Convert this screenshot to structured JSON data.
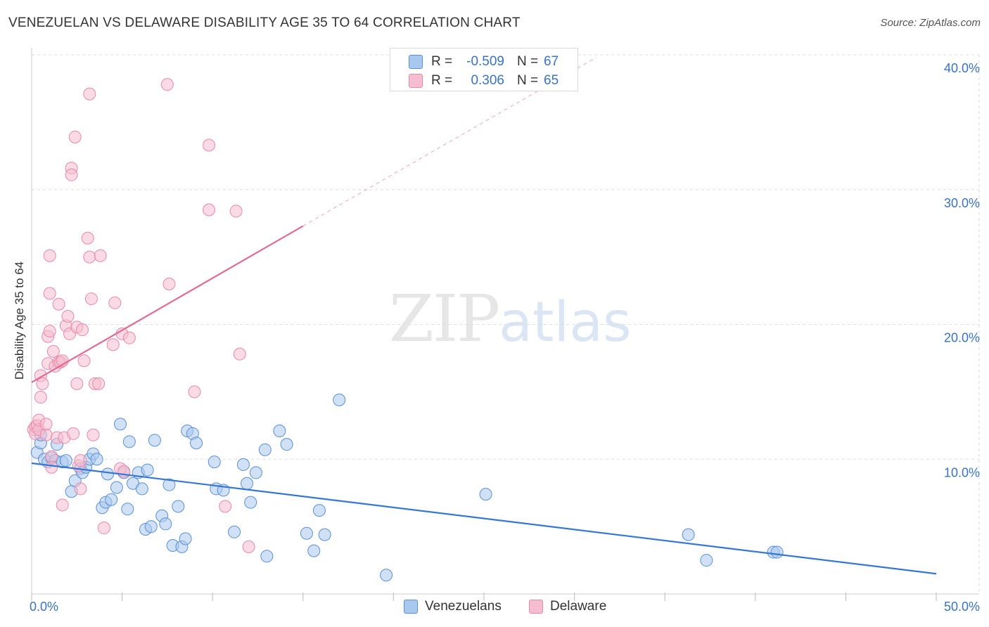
{
  "header": {
    "title": "VENEZUELAN VS DELAWARE DISABILITY AGE 35 TO 64 CORRELATION CHART",
    "source": "Source: ZipAtlas.com"
  },
  "watermark": {
    "zip": "ZIP",
    "atlas": "atlas"
  },
  "colors": {
    "blue_fill": "#a9c8ef",
    "blue_stroke": "#5b90d6",
    "blue_line": "#3577d4",
    "pink_fill": "#f6bdd0",
    "pink_stroke": "#e889a8",
    "pink_line": "#e06b95",
    "grid": "#dddddd",
    "tick_label": "#3a72c4"
  },
  "legend": {
    "rows": [
      {
        "r_label": "R =",
        "r_value": "-0.509",
        "n_label": "N =",
        "n_value": "67"
      },
      {
        "r_label": "R =",
        "r_value": "0.306",
        "n_label": "N =",
        "n_value": "65"
      }
    ]
  },
  "bottom_legend": {
    "venezuelans": "Venezuelans",
    "delaware": "Delaware"
  },
  "chart_data": {
    "type": "scatter",
    "title": "VENEZUELAN VS DELAWARE DISABILITY AGE 35 TO 64 CORRELATION CHART",
    "xlabel": "",
    "ylabel": "Disability Age 35 to 64",
    "xlim": [
      0,
      50
    ],
    "ylim": [
      0,
      40
    ],
    "x_tick_labels": [
      "0.0%",
      "50.0%"
    ],
    "y_ticks": [
      10,
      20,
      30,
      40
    ],
    "y_tick_labels": [
      "10.0%",
      "20.0%",
      "30.0%",
      "40.0%"
    ],
    "grid": true,
    "legend_position": "top-center",
    "series": [
      {
        "name": "Venezuelans",
        "r": -0.509,
        "n": 67,
        "trend": {
          "x0": 0,
          "y0": 9.7,
          "x1": 50,
          "y1": 1.5
        },
        "points": [
          [
            0.3,
            10.5
          ],
          [
            0.5,
            11.2
          ],
          [
            0.5,
            11.8
          ],
          [
            0.7,
            10.0
          ],
          [
            0.9,
            9.8
          ],
          [
            1.1,
            10.1
          ],
          [
            1.3,
            9.9
          ],
          [
            1.4,
            11.1
          ],
          [
            1.7,
            9.8
          ],
          [
            1.9,
            9.9
          ],
          [
            2.2,
            7.6
          ],
          [
            2.4,
            8.4
          ],
          [
            2.7,
            9.3
          ],
          [
            2.8,
            9.0
          ],
          [
            3.0,
            9.4
          ],
          [
            3.2,
            10.0
          ],
          [
            3.4,
            10.4
          ],
          [
            3.6,
            10.0
          ],
          [
            3.9,
            6.4
          ],
          [
            4.1,
            6.8
          ],
          [
            4.2,
            8.9
          ],
          [
            4.4,
            7.0
          ],
          [
            4.7,
            7.9
          ],
          [
            4.9,
            12.6
          ],
          [
            5.1,
            9.0
          ],
          [
            5.3,
            6.3
          ],
          [
            5.4,
            11.3
          ],
          [
            5.6,
            8.2
          ],
          [
            5.9,
            9.0
          ],
          [
            6.1,
            7.8
          ],
          [
            6.3,
            4.8
          ],
          [
            6.4,
            9.2
          ],
          [
            6.6,
            5.0
          ],
          [
            6.8,
            11.4
          ],
          [
            7.2,
            5.8
          ],
          [
            7.4,
            5.2
          ],
          [
            7.6,
            8.1
          ],
          [
            7.8,
            3.6
          ],
          [
            8.1,
            6.5
          ],
          [
            8.3,
            3.5
          ],
          [
            8.5,
            4.1
          ],
          [
            8.6,
            12.1
          ],
          [
            8.9,
            11.9
          ],
          [
            9.1,
            11.2
          ],
          [
            10.1,
            9.8
          ],
          [
            10.2,
            7.8
          ],
          [
            10.6,
            7.7
          ],
          [
            11.2,
            4.6
          ],
          [
            11.7,
            9.6
          ],
          [
            11.9,
            8.2
          ],
          [
            12.1,
            6.8
          ],
          [
            12.4,
            9.0
          ],
          [
            12.9,
            10.7
          ],
          [
            13.0,
            2.8
          ],
          [
            13.7,
            12.1
          ],
          [
            14.1,
            11.1
          ],
          [
            15.2,
            4.5
          ],
          [
            15.6,
            3.2
          ],
          [
            15.9,
            6.2
          ],
          [
            16.2,
            4.4
          ],
          [
            17.0,
            14.4
          ],
          [
            19.6,
            1.4
          ],
          [
            25.1,
            7.4
          ],
          [
            36.3,
            4.4
          ],
          [
            37.3,
            2.5
          ],
          [
            41.0,
            3.1
          ],
          [
            41.2,
            3.1
          ]
        ]
      },
      {
        "name": "Delaware",
        "r": 0.306,
        "n": 65,
        "trend": {
          "x0": 0,
          "y0": 15.7,
          "x1": 15,
          "y1": 27.3,
          "dash_x1": 31.2,
          "dash_y1": 39.8
        },
        "points": [
          [
            0.1,
            12.2
          ],
          [
            0.2,
            12.4
          ],
          [
            0.2,
            11.9
          ],
          [
            0.3,
            12.5
          ],
          [
            0.4,
            12.2
          ],
          [
            0.4,
            12.9
          ],
          [
            0.5,
            14.6
          ],
          [
            0.5,
            16.2
          ],
          [
            0.6,
            15.6
          ],
          [
            0.8,
            11.8
          ],
          [
            0.8,
            12.6
          ],
          [
            0.9,
            17.1
          ],
          [
            0.9,
            19.1
          ],
          [
            1.0,
            19.5
          ],
          [
            1.0,
            22.3
          ],
          [
            1.0,
            25.1
          ],
          [
            1.1,
            10.2
          ],
          [
            1.1,
            9.4
          ],
          [
            1.2,
            18.0
          ],
          [
            1.3,
            16.9
          ],
          [
            1.4,
            11.6
          ],
          [
            1.5,
            21.5
          ],
          [
            1.5,
            17.2
          ],
          [
            1.6,
            17.2
          ],
          [
            1.7,
            17.3
          ],
          [
            1.7,
            6.6
          ],
          [
            1.8,
            11.6
          ],
          [
            1.9,
            19.9
          ],
          [
            2.0,
            20.6
          ],
          [
            2.1,
            19.3
          ],
          [
            2.2,
            31.6
          ],
          [
            2.2,
            31.1
          ],
          [
            2.3,
            11.9
          ],
          [
            2.4,
            33.9
          ],
          [
            2.5,
            19.8
          ],
          [
            2.5,
            15.6
          ],
          [
            2.6,
            9.5
          ],
          [
            2.7,
            9.9
          ],
          [
            2.7,
            7.8
          ],
          [
            2.8,
            19.6
          ],
          [
            2.9,
            17.3
          ],
          [
            3.1,
            26.4
          ],
          [
            3.2,
            25.0
          ],
          [
            3.2,
            37.1
          ],
          [
            3.3,
            21.9
          ],
          [
            3.4,
            11.8
          ],
          [
            3.5,
            15.6
          ],
          [
            3.7,
            15.6
          ],
          [
            3.8,
            25.1
          ],
          [
            4.0,
            4.9
          ],
          [
            4.5,
            18.5
          ],
          [
            4.6,
            21.6
          ],
          [
            4.9,
            9.3
          ],
          [
            5.0,
            19.3
          ],
          [
            5.1,
            9.1
          ],
          [
            5.4,
            19.0
          ],
          [
            7.5,
            37.8
          ],
          [
            7.6,
            23.0
          ],
          [
            9.0,
            15.0
          ],
          [
            9.8,
            33.3
          ],
          [
            9.8,
            28.5
          ],
          [
            10.7,
            6.5
          ],
          [
            11.3,
            28.4
          ],
          [
            11.5,
            17.8
          ],
          [
            12.0,
            3.5
          ]
        ]
      }
    ]
  }
}
